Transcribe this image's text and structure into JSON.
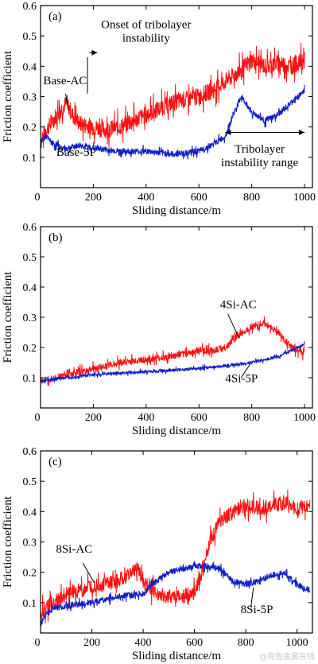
{
  "watermark": "@有色金属在线",
  "style": {
    "red": "#ff1010",
    "blue": "#1020c8",
    "axis": "#000000"
  },
  "chart_data": [
    {
      "type": "line",
      "panel_label": "(a)",
      "xlabel": "Sliding distance/m",
      "ylabel": "Friction coefficient",
      "xlim": [
        0,
        1030
      ],
      "ylim": [
        0,
        0.6
      ],
      "xticks": [
        0,
        200,
        400,
        600,
        800,
        1000
      ],
      "yticks": [
        0.1,
        0.2,
        0.3,
        0.4,
        0.5,
        0.6
      ],
      "series": [
        {
          "name": "Base-AC",
          "color": "red",
          "noise": 0.035,
          "x": [
            0,
            20,
            40,
            60,
            80,
            100,
            120,
            150,
            200,
            250,
            300,
            350,
            400,
            450,
            500,
            550,
            600,
            650,
            700,
            750,
            800,
            850,
            900,
            950,
            1000
          ],
          "y": [
            0.15,
            0.19,
            0.21,
            0.24,
            0.26,
            0.28,
            0.24,
            0.21,
            0.2,
            0.19,
            0.2,
            0.22,
            0.24,
            0.26,
            0.28,
            0.29,
            0.3,
            0.32,
            0.35,
            0.38,
            0.42,
            0.4,
            0.41,
            0.4,
            0.42
          ]
        },
        {
          "name": "Base-5P",
          "color": "blue",
          "noise": 0.012,
          "x": [
            0,
            20,
            40,
            60,
            80,
            100,
            150,
            200,
            300,
            400,
            500,
            600,
            650,
            700,
            730,
            760,
            800,
            850,
            900,
            950,
            1000
          ],
          "y": [
            0.15,
            0.17,
            0.15,
            0.14,
            0.13,
            0.13,
            0.14,
            0.13,
            0.12,
            0.12,
            0.11,
            0.12,
            0.14,
            0.17,
            0.24,
            0.3,
            0.25,
            0.22,
            0.24,
            0.28,
            0.32
          ]
        }
      ],
      "annotations": [
        {
          "id": "base-ac-label",
          "lines": [
            "Base-AC"
          ],
          "x": 10,
          "y": 0.34
        },
        {
          "id": "base-5p-label",
          "lines": [
            "Base-5P"
          ],
          "x": 60,
          "y": 0.105
        },
        {
          "id": "onset-label",
          "lines": [
            "Onset of tribolayer",
            "instability"
          ],
          "x": 400,
          "y": 0.525
        },
        {
          "id": "range-label",
          "lines": [
            "Tribolayer",
            "instability range"
          ],
          "x": 830,
          "y": 0.115
        }
      ]
    },
    {
      "type": "line",
      "panel_label": "(b)",
      "xlabel": "Sliding distance/m",
      "ylabel": "Friction coefficient",
      "xlim": [
        0,
        1030
      ],
      "ylim": [
        0,
        0.6
      ],
      "xticks": [
        0,
        200,
        400,
        600,
        800,
        1000
      ],
      "yticks": [
        0.1,
        0.2,
        0.3,
        0.4,
        0.5,
        0.6
      ],
      "series": [
        {
          "name": "4Si-AC",
          "color": "red",
          "noise": 0.014,
          "x": [
            0,
            50,
            100,
            200,
            300,
            400,
            500,
            600,
            650,
            700,
            750,
            800,
            850,
            900,
            950,
            1000
          ],
          "y": [
            0.09,
            0.1,
            0.11,
            0.13,
            0.15,
            0.16,
            0.17,
            0.19,
            0.19,
            0.2,
            0.24,
            0.27,
            0.28,
            0.25,
            0.2,
            0.18
          ]
        },
        {
          "name": "4Si-5P",
          "color": "blue",
          "noise": 0.006,
          "x": [
            0,
            100,
            200,
            300,
            400,
            500,
            600,
            700,
            800,
            900,
            950,
            1000
          ],
          "y": [
            0.09,
            0.1,
            0.11,
            0.115,
            0.12,
            0.125,
            0.13,
            0.14,
            0.15,
            0.17,
            0.19,
            0.21
          ]
        }
      ],
      "annotations": [
        {
          "id": "4si-ac-label",
          "lines": [
            "4Si-AC"
          ],
          "x": 680,
          "y": 0.33
        },
        {
          "id": "4si-5p-label",
          "lines": [
            "4Si-5P"
          ],
          "x": 700,
          "y": 0.085
        }
      ]
    },
    {
      "type": "line",
      "panel_label": "(c)",
      "xlabel": "Sliding distance/m",
      "ylabel": "Friction coefficient",
      "xlim": [
        0,
        1060
      ],
      "ylim": [
        0,
        0.6
      ],
      "xticks": [
        0,
        200,
        400,
        600,
        800,
        1000
      ],
      "yticks": [
        0.1,
        0.2,
        0.3,
        0.4,
        0.5,
        0.6
      ],
      "series": [
        {
          "name": "8Si-AC",
          "color": "red",
          "noise": 0.03,
          "x": [
            0,
            50,
            100,
            200,
            300,
            360,
            380,
            400,
            450,
            500,
            550,
            600,
            630,
            660,
            700,
            750,
            800,
            850,
            900,
            950,
            1000,
            1050
          ],
          "y": [
            0.07,
            0.1,
            0.13,
            0.15,
            0.17,
            0.2,
            0.21,
            0.17,
            0.13,
            0.12,
            0.12,
            0.13,
            0.2,
            0.3,
            0.37,
            0.4,
            0.42,
            0.41,
            0.42,
            0.43,
            0.41,
            0.42
          ]
        },
        {
          "name": "8Si-5P",
          "color": "blue",
          "noise": 0.012,
          "x": [
            0,
            20,
            50,
            100,
            200,
            300,
            400,
            450,
            500,
            550,
            600,
            650,
            700,
            750,
            800,
            850,
            900,
            950,
            1000,
            1050
          ],
          "y": [
            0.03,
            0.06,
            0.08,
            0.09,
            0.1,
            0.12,
            0.13,
            0.17,
            0.2,
            0.21,
            0.22,
            0.22,
            0.21,
            0.17,
            0.16,
            0.17,
            0.19,
            0.2,
            0.16,
            0.14
          ]
        }
      ],
      "annotations": [
        {
          "id": "8si-ac-label",
          "lines": [
            "8Si-AC"
          ],
          "x": 60,
          "y": 0.265
        },
        {
          "id": "8si-5p-label",
          "lines": [
            "8Si-5P"
          ],
          "x": 780,
          "y": 0.065
        }
      ]
    }
  ]
}
